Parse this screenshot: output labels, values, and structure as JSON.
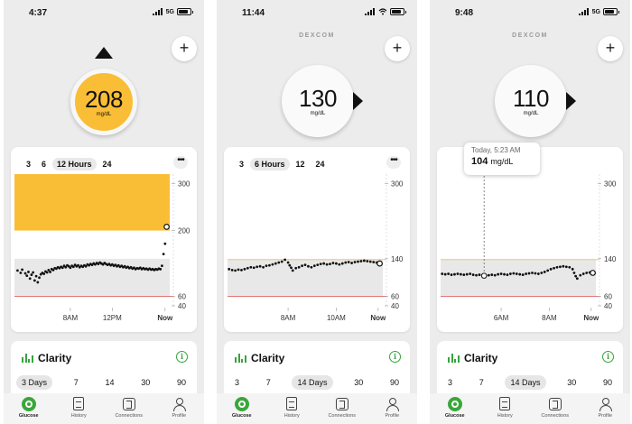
{
  "colors": {
    "high": "#f9be36",
    "low_line": "#e06666",
    "high_line": "#f2c066",
    "accent": "#3aa63b",
    "target_band": "#e8e8e8"
  },
  "screens": [
    {
      "status": {
        "time": "4:37",
        "network": "5G"
      },
      "brand": "",
      "reading": {
        "value": "208",
        "unit": "mg/dL",
        "trend": "up",
        "state": "high"
      },
      "range_tabs": [
        {
          "label": "3"
        },
        {
          "label": "6"
        },
        {
          "label": "12 Hours",
          "selected": true
        },
        {
          "label": "24"
        }
      ],
      "chart_data": {
        "type": "scatter",
        "y_ticks": [
          "300",
          "200",
          "60",
          "40"
        ],
        "y_tick_values": [
          300,
          200,
          60,
          40
        ],
        "ylim": [
          40,
          320
        ],
        "target_range": [
          60,
          140
        ],
        "x_ticks": [
          "8AM",
          "12PM",
          "Now"
        ],
        "x_tick_values": [
          0.36,
          0.63,
          0.97
        ],
        "points": [
          [
            0.02,
            115
          ],
          [
            0.04,
            110
          ],
          [
            0.05,
            117
          ],
          [
            0.07,
            109
          ],
          [
            0.08,
            104
          ],
          [
            0.09,
            112
          ],
          [
            0.1,
            98
          ],
          [
            0.11,
            106
          ],
          [
            0.12,
            111
          ],
          [
            0.13,
            94
          ],
          [
            0.14,
            103
          ],
          [
            0.15,
            90
          ],
          [
            0.16,
            100
          ],
          [
            0.17,
            107
          ],
          [
            0.18,
            110
          ],
          [
            0.19,
            108
          ],
          [
            0.2,
            113
          ],
          [
            0.21,
            111
          ],
          [
            0.22,
            116
          ],
          [
            0.23,
            112
          ],
          [
            0.24,
            118
          ],
          [
            0.25,
            116
          ],
          [
            0.26,
            120
          ],
          [
            0.27,
            119
          ],
          [
            0.28,
            122
          ],
          [
            0.29,
            120
          ],
          [
            0.3,
            123
          ],
          [
            0.31,
            121
          ],
          [
            0.32,
            125
          ],
          [
            0.33,
            122
          ],
          [
            0.34,
            126
          ],
          [
            0.35,
            124
          ],
          [
            0.36,
            121
          ],
          [
            0.37,
            125
          ],
          [
            0.38,
            123
          ],
          [
            0.39,
            127
          ],
          [
            0.4,
            124
          ],
          [
            0.41,
            126
          ],
          [
            0.42,
            122
          ],
          [
            0.43,
            125
          ],
          [
            0.44,
            123
          ],
          [
            0.45,
            126
          ],
          [
            0.46,
            124
          ],
          [
            0.47,
            128
          ],
          [
            0.48,
            126
          ],
          [
            0.49,
            129
          ],
          [
            0.5,
            127
          ],
          [
            0.51,
            130
          ],
          [
            0.52,
            128
          ],
          [
            0.53,
            131
          ],
          [
            0.54,
            129
          ],
          [
            0.55,
            132
          ],
          [
            0.56,
            130
          ],
          [
            0.57,
            128
          ],
          [
            0.58,
            131
          ],
          [
            0.59,
            129
          ],
          [
            0.6,
            127
          ],
          [
            0.61,
            129
          ],
          [
            0.62,
            126
          ],
          [
            0.63,
            128
          ],
          [
            0.64,
            125
          ],
          [
            0.65,
            127
          ],
          [
            0.66,
            124
          ],
          [
            0.67,
            126
          ],
          [
            0.68,
            123
          ],
          [
            0.69,
            125
          ],
          [
            0.7,
            122
          ],
          [
            0.71,
            124
          ],
          [
            0.72,
            121
          ],
          [
            0.73,
            123
          ],
          [
            0.74,
            120
          ],
          [
            0.75,
            122
          ],
          [
            0.76,
            119
          ],
          [
            0.77,
            121
          ],
          [
            0.78,
            118
          ],
          [
            0.79,
            120
          ],
          [
            0.8,
            119
          ],
          [
            0.81,
            121
          ],
          [
            0.82,
            118
          ],
          [
            0.83,
            120
          ],
          [
            0.84,
            118
          ],
          [
            0.85,
            119
          ],
          [
            0.86,
            117
          ],
          [
            0.87,
            119
          ],
          [
            0.88,
            117
          ],
          [
            0.89,
            118
          ],
          [
            0.9,
            116
          ],
          [
            0.91,
            118
          ],
          [
            0.92,
            117
          ],
          [
            0.93,
            119
          ],
          [
            0.94,
            118
          ],
          [
            0.95,
            125
          ],
          [
            0.96,
            150
          ],
          [
            0.97,
            172
          ]
        ],
        "current_point": [
          0.98,
          208
        ],
        "fill_above": 200
      },
      "clarity": {
        "title": "Clarity",
        "tabs": [
          {
            "label": "3 Days",
            "selected": true
          },
          {
            "label": "7"
          },
          {
            "label": "14"
          },
          {
            "label": "30"
          },
          {
            "label": "90"
          }
        ]
      },
      "nav": [
        {
          "label": "Glucose",
          "active": true
        },
        {
          "label": "History"
        },
        {
          "label": "Connections"
        },
        {
          "label": "Profile"
        }
      ]
    },
    {
      "status": {
        "time": "11:44",
        "network": ""
      },
      "brand": "DEXCOM",
      "reading": {
        "value": "130",
        "unit": "mg/dL",
        "trend": "right",
        "state": "normal"
      },
      "range_tabs": [
        {
          "label": "3"
        },
        {
          "label": "6 Hours",
          "selected": true
        },
        {
          "label": "12"
        },
        {
          "label": "24"
        }
      ],
      "chart_data": {
        "type": "scatter",
        "y_ticks": [
          "300",
          "140",
          "60",
          "40"
        ],
        "y_tick_values": [
          300,
          140,
          60,
          40
        ],
        "ylim": [
          40,
          320
        ],
        "target_range": [
          60,
          140
        ],
        "x_ticks": [
          "8AM",
          "10AM",
          "Now"
        ],
        "x_tick_values": [
          0.39,
          0.7,
          0.97
        ],
        "points": [
          [
            0.01,
            118
          ],
          [
            0.03,
            116
          ],
          [
            0.05,
            115
          ],
          [
            0.07,
            117
          ],
          [
            0.09,
            116
          ],
          [
            0.11,
            118
          ],
          [
            0.13,
            120
          ],
          [
            0.15,
            122
          ],
          [
            0.17,
            121
          ],
          [
            0.19,
            123
          ],
          [
            0.21,
            124
          ],
          [
            0.23,
            122
          ],
          [
            0.25,
            125
          ],
          [
            0.27,
            126
          ],
          [
            0.29,
            128
          ],
          [
            0.31,
            130
          ],
          [
            0.33,
            132
          ],
          [
            0.35,
            134
          ],
          [
            0.37,
            138
          ],
          [
            0.39,
            132
          ],
          [
            0.4,
            126
          ],
          [
            0.41,
            121
          ],
          [
            0.42,
            115
          ],
          [
            0.44,
            120
          ],
          [
            0.46,
            122
          ],
          [
            0.48,
            125
          ],
          [
            0.5,
            127
          ],
          [
            0.52,
            124
          ],
          [
            0.54,
            122
          ],
          [
            0.56,
            125
          ],
          [
            0.58,
            127
          ],
          [
            0.6,
            129
          ],
          [
            0.62,
            130
          ],
          [
            0.64,
            128
          ],
          [
            0.66,
            129
          ],
          [
            0.68,
            131
          ],
          [
            0.7,
            130
          ],
          [
            0.72,
            128
          ],
          [
            0.74,
            130
          ],
          [
            0.76,
            132
          ],
          [
            0.78,
            133
          ],
          [
            0.8,
            131
          ],
          [
            0.82,
            133
          ],
          [
            0.84,
            134
          ],
          [
            0.86,
            135
          ],
          [
            0.88,
            136
          ],
          [
            0.9,
            135
          ],
          [
            0.92,
            134
          ],
          [
            0.94,
            133
          ],
          [
            0.96,
            132
          ]
        ],
        "current_point": [
          0.98,
          130
        ]
      },
      "clarity": {
        "title": "Clarity",
        "tabs": [
          {
            "label": "3"
          },
          {
            "label": "7"
          },
          {
            "label": "14 Days",
            "selected": true
          },
          {
            "label": "30"
          },
          {
            "label": "90"
          }
        ]
      },
      "nav": [
        {
          "label": "Glucose",
          "active": true
        },
        {
          "label": "History"
        },
        {
          "label": "Connections"
        },
        {
          "label": "Profile"
        }
      ]
    },
    {
      "status": {
        "time": "9:48",
        "network": "5G"
      },
      "brand": "DEXCOM",
      "reading": {
        "value": "110",
        "unit": "mg/dL",
        "trend": "right",
        "state": "normal"
      },
      "range_tabs": [],
      "tooltip": {
        "time": "Today, 5:23 AM",
        "value": "104",
        "unit": "mg/dL",
        "x": 0.28
      },
      "chart_data": {
        "type": "scatter",
        "y_ticks": [
          "300",
          "140",
          "60",
          "40"
        ],
        "y_tick_values": [
          300,
          140,
          60,
          40
        ],
        "ylim": [
          40,
          320
        ],
        "target_range": [
          60,
          140
        ],
        "x_ticks": [
          "6AM",
          "8AM",
          "Now"
        ],
        "x_tick_values": [
          0.39,
          0.7,
          0.97
        ],
        "points": [
          [
            0.01,
            108
          ],
          [
            0.03,
            107
          ],
          [
            0.05,
            108
          ],
          [
            0.07,
            106
          ],
          [
            0.09,
            107
          ],
          [
            0.11,
            108
          ],
          [
            0.13,
            107
          ],
          [
            0.15,
            106
          ],
          [
            0.17,
            107
          ],
          [
            0.19,
            108
          ],
          [
            0.21,
            106
          ],
          [
            0.23,
            105
          ],
          [
            0.25,
            106
          ],
          [
            0.27,
            105
          ],
          [
            0.29,
            104
          ],
          [
            0.31,
            105
          ],
          [
            0.33,
            106
          ],
          [
            0.35,
            105
          ],
          [
            0.37,
            107
          ],
          [
            0.39,
            108
          ],
          [
            0.41,
            107
          ],
          [
            0.43,
            106
          ],
          [
            0.45,
            108
          ],
          [
            0.47,
            109
          ],
          [
            0.49,
            108
          ],
          [
            0.51,
            107
          ],
          [
            0.53,
            106
          ],
          [
            0.55,
            108
          ],
          [
            0.57,
            109
          ],
          [
            0.59,
            110
          ],
          [
            0.61,
            109
          ],
          [
            0.63,
            108
          ],
          [
            0.65,
            110
          ],
          [
            0.67,
            112
          ],
          [
            0.69,
            115
          ],
          [
            0.71,
            118
          ],
          [
            0.73,
            120
          ],
          [
            0.75,
            122
          ],
          [
            0.77,
            123
          ],
          [
            0.79,
            124
          ],
          [
            0.81,
            123
          ],
          [
            0.83,
            122
          ],
          [
            0.85,
            118
          ],
          [
            0.86,
            110
          ],
          [
            0.87,
            103
          ],
          [
            0.88,
            98
          ],
          [
            0.9,
            105
          ],
          [
            0.92,
            108
          ],
          [
            0.94,
            110
          ],
          [
            0.96,
            111
          ]
        ],
        "current_point": [
          0.98,
          110
        ]
      },
      "clarity": {
        "title": "Clarity",
        "tabs": [
          {
            "label": "3"
          },
          {
            "label": "7"
          },
          {
            "label": "14 Days",
            "selected": true
          },
          {
            "label": "30"
          },
          {
            "label": "90"
          }
        ]
      },
      "nav": [
        {
          "label": "Glucose",
          "active": true
        },
        {
          "label": "History"
        },
        {
          "label": "Connections"
        },
        {
          "label": "Profile"
        }
      ]
    }
  ]
}
